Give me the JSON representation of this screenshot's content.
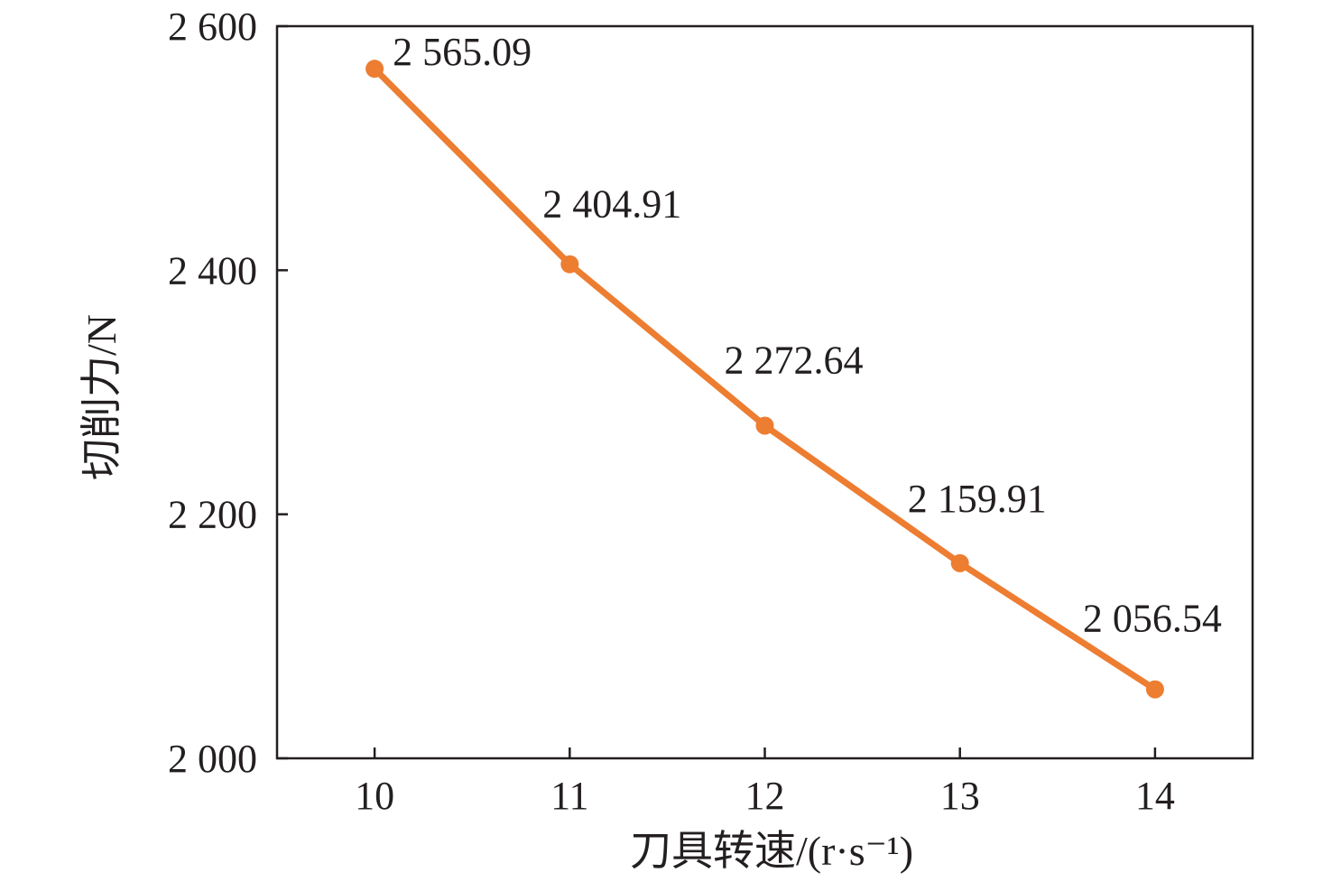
{
  "chart_data": {
    "type": "line",
    "title": "",
    "xlabel": "刀具转速/(r·s⁻¹)",
    "ylabel": "切削力/N",
    "x": [
      10,
      11,
      12,
      13,
      14
    ],
    "xticks": [
      10,
      11,
      12,
      13,
      14
    ],
    "xtick_labels": [
      "10",
      "11",
      "12",
      "13",
      "14"
    ],
    "xlim": [
      9.5,
      14.5
    ],
    "ylim": [
      2000,
      2600
    ],
    "yticks": [
      2000,
      2200,
      2400,
      2600
    ],
    "ytick_labels": [
      "2 000",
      "2 200",
      "2 400",
      "2 600"
    ],
    "series": [
      {
        "values": [
          2565.09,
          2404.91,
          2272.64,
          2159.91,
          2056.54
        ],
        "labels": [
          "2 565.09",
          "2 404.91",
          "2 272.64",
          "2 159.91",
          "2 056.54"
        ],
        "color": "#ed7d31"
      }
    ],
    "grid": false,
    "legend": "none"
  }
}
